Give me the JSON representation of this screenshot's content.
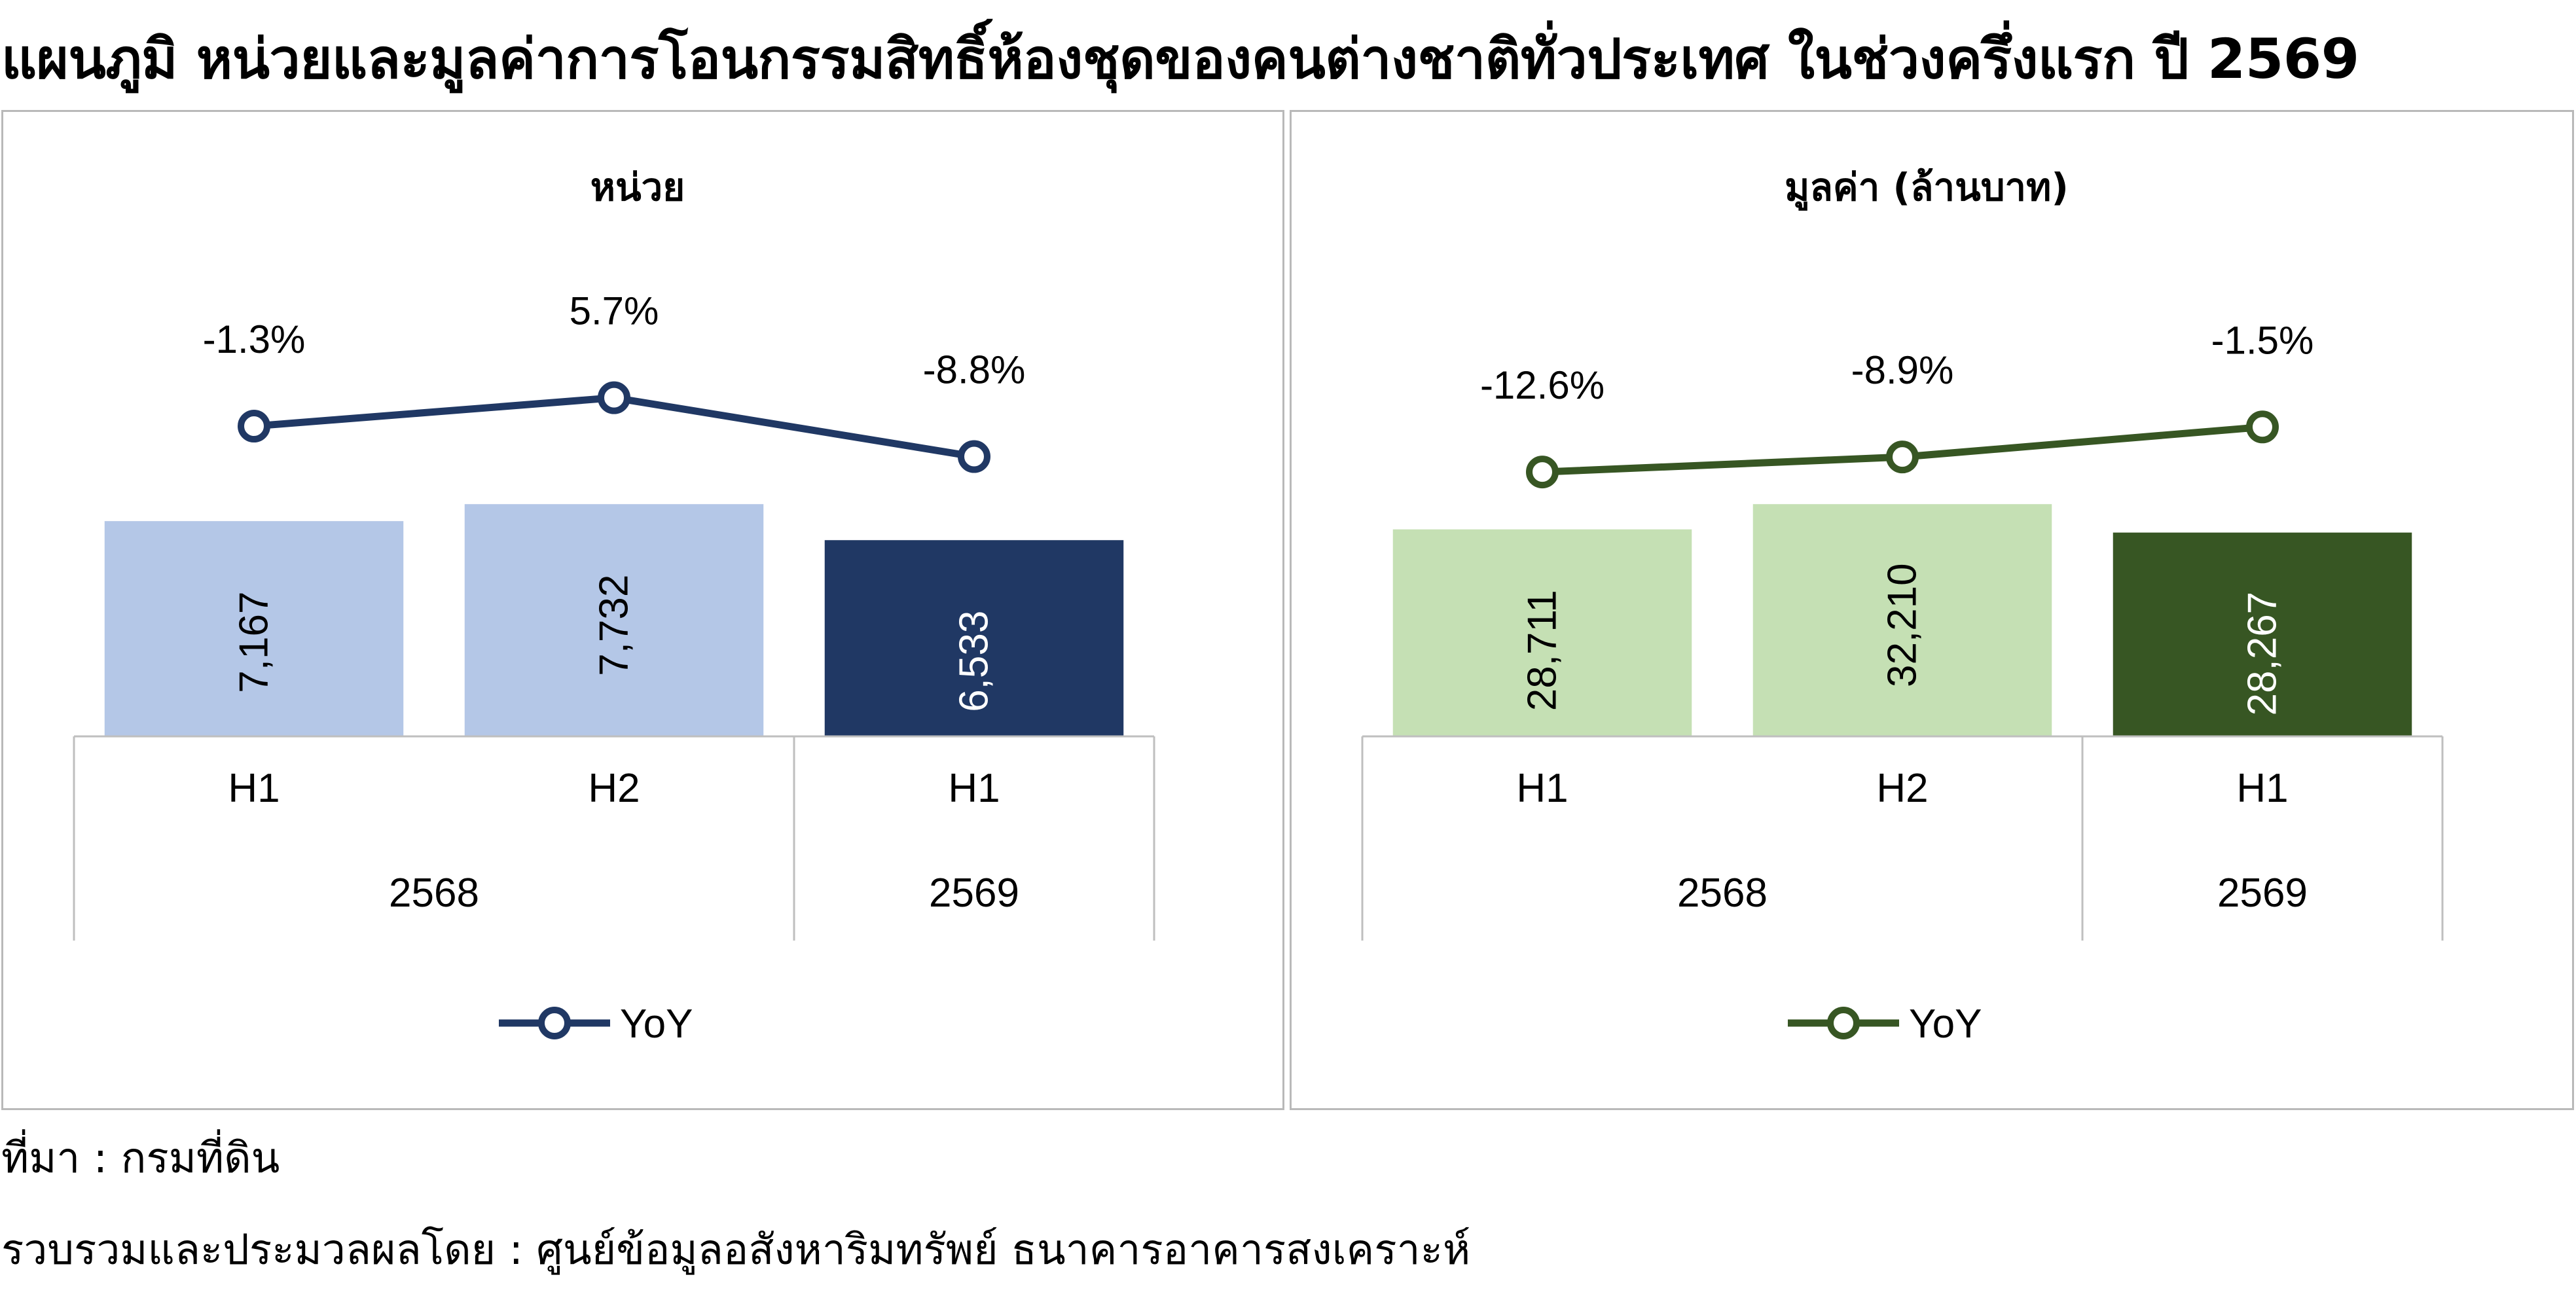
{
  "title": "แผนภูมิ หน่วยและมูลค่าการโอนกรรมสิทธิ์ห้องชุดของคนต่างชาติทั่วประเทศ ในช่วงครึ่งแรก ปี 2569",
  "footnotes": {
    "source": "ที่มา : กรมที่ดิน",
    "compiled": "รวบรวมและประมวลผลโดย : ศูนย์ข้อมูลอสังหาริมทรัพย์ ธนาคารอาคารสงเคราะห์"
  },
  "chart_data": [
    {
      "type": "bar",
      "title": "หน่วย",
      "categories": [
        "H1",
        "H2",
        "H1"
      ],
      "groups": [
        {
          "label": "2568",
          "span": 2
        },
        {
          "label": "2569",
          "span": 1
        }
      ],
      "values": [
        7167,
        7732,
        6533
      ],
      "value_labels": [
        "7,167",
        "7,732",
        "6,533"
      ],
      "bar_colors": [
        "#b4c7e7",
        "#b4c7e7",
        "#203864"
      ],
      "label_colors": [
        "#000000",
        "#000000",
        "#ffffff"
      ],
      "line_series": {
        "name": "YoY",
        "values": [
          -1.3,
          5.7,
          -8.8
        ],
        "labels": [
          "-1.3%",
          "5.7%",
          "-8.8%"
        ],
        "color": "#203864"
      },
      "legend_position": "bottom"
    },
    {
      "type": "bar",
      "title": "มูลค่า (ล้านบาท)",
      "categories": [
        "H1",
        "H2",
        "H1"
      ],
      "groups": [
        {
          "label": "2568",
          "span": 2
        },
        {
          "label": "2569",
          "span": 1
        }
      ],
      "values": [
        28711,
        32210,
        28267
      ],
      "value_labels": [
        "28,711",
        "32,210",
        "28,267"
      ],
      "bar_colors": [
        "#c5e0b4",
        "#c5e0b4",
        "#375623"
      ],
      "label_colors": [
        "#000000",
        "#000000",
        "#ffffff"
      ],
      "line_series": {
        "name": "YoY",
        "values": [
          -12.6,
          -8.9,
          -1.5
        ],
        "labels": [
          "-12.6%",
          "-8.9%",
          "-1.5%"
        ],
        "color": "#375623"
      },
      "legend_position": "bottom"
    }
  ]
}
